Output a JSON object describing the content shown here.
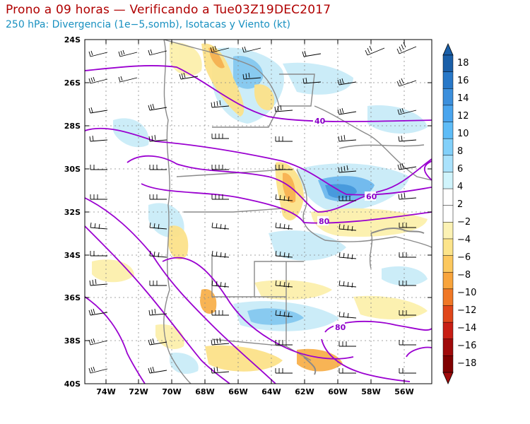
{
  "header": {
    "title": "Prono a 09 horas — Verificando a Tue03Z19DEC2017",
    "subtitle": "250 hPa: Divergencia (1e−5,somb), Isotacas y Viento (kt)"
  },
  "map": {
    "lat_labels": [
      "24S",
      "26S",
      "28S",
      "30S",
      "32S",
      "34S",
      "36S",
      "38S",
      "40S"
    ],
    "lon_labels": [
      "74W",
      "72W",
      "70W",
      "68W",
      "66W",
      "64W",
      "62W",
      "60W",
      "58W",
      "56W"
    ],
    "isotach_labels": [
      "40",
      "60",
      "80",
      "80"
    ]
  },
  "colorbar": {
    "labels": [
      "18",
      "16",
      "14",
      "12",
      "10",
      "8",
      "6",
      "4",
      "2",
      "−2",
      "−4",
      "−6",
      "−8",
      "−10",
      "−12",
      "−14",
      "−16",
      "−18"
    ],
    "colors": [
      "#1a5fa8",
      "#2878c8",
      "#3c8fdc",
      "#4aa5ee",
      "#5ebcf7",
      "#82d0fa",
      "#aae2fc",
      "#d0f4fc",
      "#ffffff",
      "#ffffff",
      "#fcf2b4",
      "#fce48a",
      "#fcc85e",
      "#f8a43c",
      "#f07826",
      "#e0461a",
      "#c81e14",
      "#a00a0a",
      "#800000"
    ],
    "scale_bands": [
      "18 to 16",
      "16 to 14",
      "14 to 12",
      "12 to 10",
      "10 to 8",
      "8 to 6",
      "6 to 4",
      "4 to 2",
      "2 to -2",
      "-2 to -4",
      "-4 to -6",
      "-6 to -8",
      "-8 to -10",
      "-10 to -12",
      "-12 to -14",
      "-14 to -16",
      "-16 to -18"
    ]
  }
}
